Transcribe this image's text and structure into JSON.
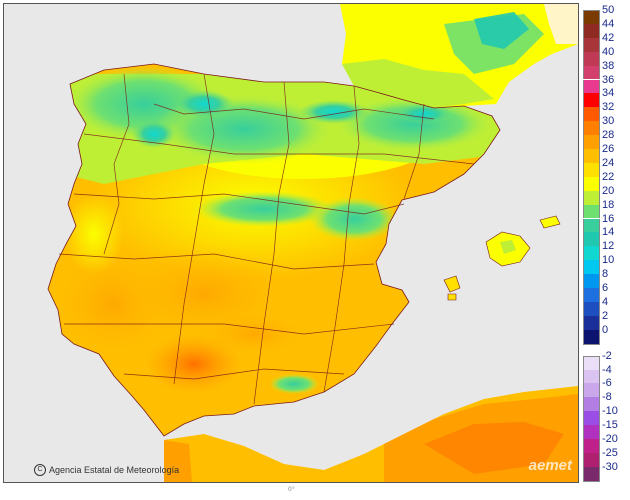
{
  "map": {
    "credit_text": "Agencia Estatal de Meteorología",
    "logo_text": "aemet",
    "bottom_mark": "0°"
  },
  "legend": {
    "positive": [
      {
        "label": "50",
        "color": "#7a3a00"
      },
      {
        "label": "44",
        "color": "#8e2a22"
      },
      {
        "label": "42",
        "color": "#a8353a"
      },
      {
        "label": "40",
        "color": "#c03a55"
      },
      {
        "label": "38",
        "color": "#d4406e"
      },
      {
        "label": "36",
        "color": "#ea3a90"
      },
      {
        "label": "34",
        "color": "#ff0000"
      },
      {
        "label": "32",
        "color": "#ff5a00"
      },
      {
        "label": "30",
        "color": "#ff8000"
      },
      {
        "label": "28",
        "color": "#ff9f00"
      },
      {
        "label": "26",
        "color": "#ffbf00"
      },
      {
        "label": "24",
        "color": "#ffe000"
      },
      {
        "label": "22",
        "color": "#fbff00"
      },
      {
        "label": "20",
        "color": "#bfef35"
      },
      {
        "label": "18",
        "color": "#6ee070"
      },
      {
        "label": "16",
        "color": "#38cf9c"
      },
      {
        "label": "14",
        "color": "#20c8b0"
      },
      {
        "label": "12",
        "color": "#10d8d0"
      },
      {
        "label": "10",
        "color": "#00c8f0"
      },
      {
        "label": "8",
        "color": "#0097f0"
      },
      {
        "label": "6",
        "color": "#1e6fe0"
      },
      {
        "label": "4",
        "color": "#1d4fc0"
      },
      {
        "label": "2",
        "color": "#1a2f9a"
      },
      {
        "label": "0",
        "color": "#0c1470"
      }
    ],
    "negative": [
      {
        "label": "-2",
        "color": "#ebdff7"
      },
      {
        "label": "-4",
        "color": "#dac3f0"
      },
      {
        "label": "-6",
        "color": "#c9a7ea"
      },
      {
        "label": "-8",
        "color": "#b27ee4"
      },
      {
        "label": "-10",
        "color": "#9a4ee6"
      },
      {
        "label": "-15",
        "color": "#b030c0"
      },
      {
        "label": "-20",
        "color": "#c0208a"
      },
      {
        "label": "-25",
        "color": "#b02070"
      },
      {
        "label": "-30",
        "color": "#7a2a6a"
      }
    ]
  }
}
